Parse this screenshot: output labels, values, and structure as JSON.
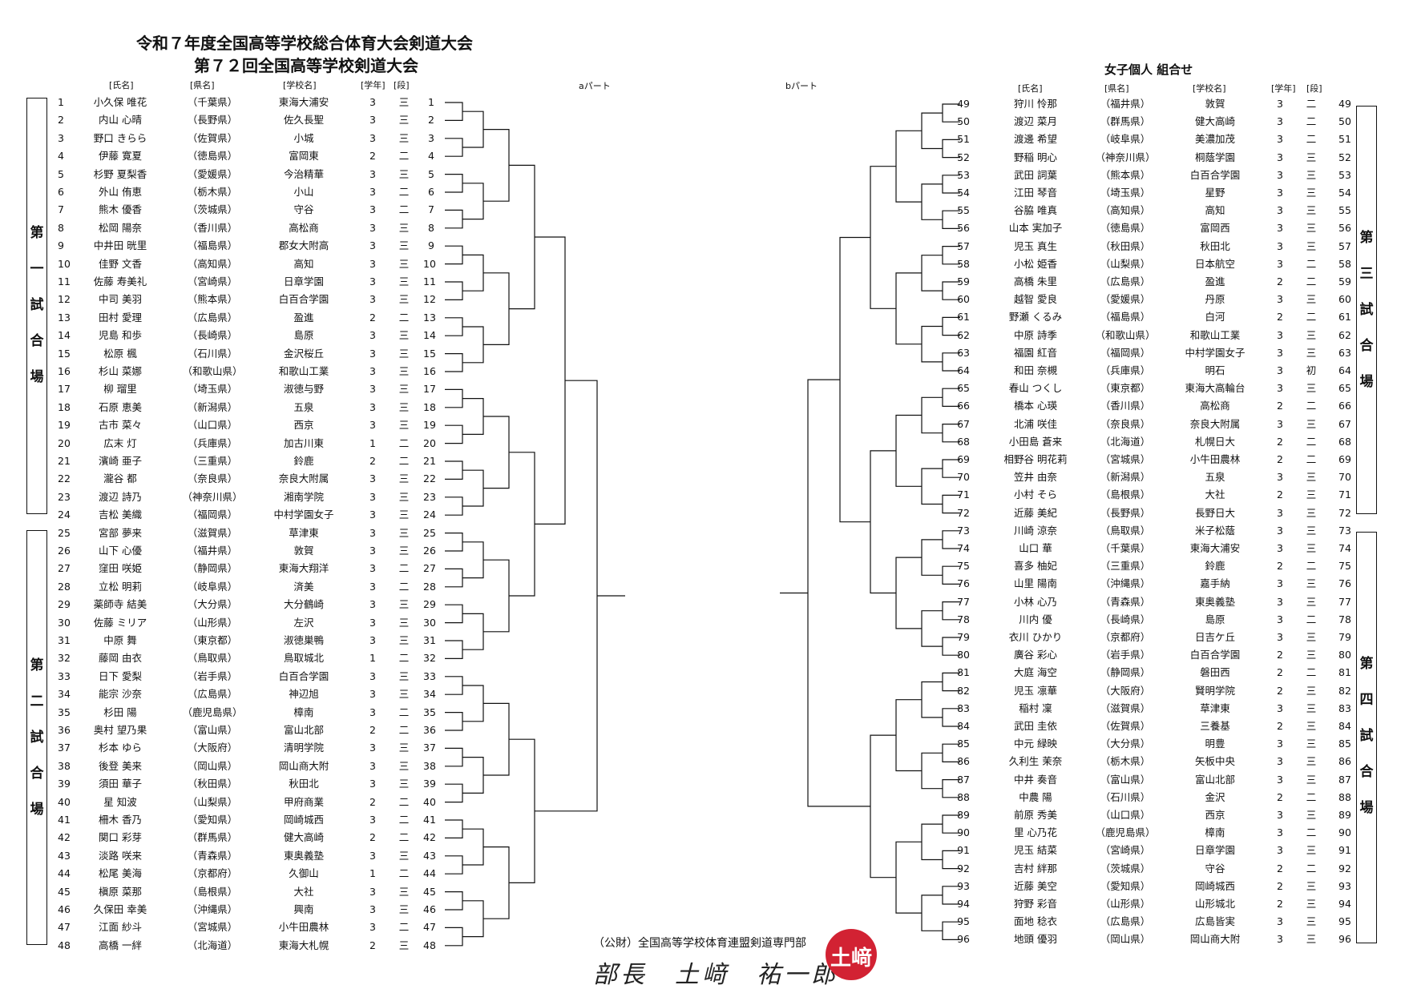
{
  "header": {
    "title_line1": "令和７年度全国高等学校総合体育大会剣道大会",
    "title_line2": "第７２回全国高等学校剣道大会",
    "subtitle": "女子個人 組合せ",
    "part_a": "aパート",
    "part_b": "bパート"
  },
  "columns": {
    "name": "[氏名]",
    "pref": "[県名]",
    "school": "[学校名]",
    "grade": "[学年]",
    "dan": "[段]"
  },
  "venues": [
    {
      "label": [
        "第",
        "一",
        "試",
        "合",
        "場"
      ]
    },
    {
      "label": [
        "第",
        "二",
        "試",
        "合",
        "場"
      ]
    },
    {
      "label": [
        "第",
        "三",
        "試",
        "合",
        "場"
      ]
    },
    {
      "label": [
        "第",
        "四",
        "試",
        "合",
        "場"
      ]
    }
  ],
  "footer": {
    "org": "（公財）全国高等学校体育連盟剣道専門部",
    "signature": "部長　土﨑　祐一郎",
    "seal": "土﨑"
  },
  "seal_color": "#d22233",
  "left_players": [
    {
      "no": "1",
      "name": "小久保 唯花",
      "pref": "（千葉県）",
      "school": "東海大浦安",
      "grade": "3",
      "dan": "三"
    },
    {
      "no": "2",
      "name": "内山 心晴",
      "pref": "（長野県）",
      "school": "佐久長聖",
      "grade": "3",
      "dan": "三"
    },
    {
      "no": "3",
      "name": "野口 きらら",
      "pref": "（佐賀県）",
      "school": "小城",
      "grade": "3",
      "dan": "三"
    },
    {
      "no": "4",
      "name": "伊藤 寛夏",
      "pref": "（徳島県）",
      "school": "富岡東",
      "grade": "2",
      "dan": "二"
    },
    {
      "no": "5",
      "name": "杉野 夏梨香",
      "pref": "（愛媛県）",
      "school": "今治精華",
      "grade": "3",
      "dan": "三"
    },
    {
      "no": "6",
      "name": "外山 侑恵",
      "pref": "（栃木県）",
      "school": "小山",
      "grade": "3",
      "dan": "二"
    },
    {
      "no": "7",
      "name": "熊木 優香",
      "pref": "（茨城県）",
      "school": "守谷",
      "grade": "3",
      "dan": "二"
    },
    {
      "no": "8",
      "name": "松岡 陽奈",
      "pref": "（香川県）",
      "school": "高松商",
      "grade": "3",
      "dan": "三"
    },
    {
      "no": "9",
      "name": "中井田 晄里",
      "pref": "（福島県）",
      "school": "郡女大附高",
      "grade": "3",
      "dan": "三"
    },
    {
      "no": "10",
      "name": "佳野 文香",
      "pref": "（高知県）",
      "school": "高知",
      "grade": "3",
      "dan": "三"
    },
    {
      "no": "11",
      "name": "佐藤 寿美礼",
      "pref": "（宮崎県）",
      "school": "日章学園",
      "grade": "3",
      "dan": "三"
    },
    {
      "no": "12",
      "name": "中司 美羽",
      "pref": "（熊本県）",
      "school": "白百合学園",
      "grade": "3",
      "dan": "三"
    },
    {
      "no": "13",
      "name": "田村 愛理",
      "pref": "（広島県）",
      "school": "盈進",
      "grade": "2",
      "dan": "二"
    },
    {
      "no": "14",
      "name": "児島 和歩",
      "pref": "（長崎県）",
      "school": "島原",
      "grade": "3",
      "dan": "三"
    },
    {
      "no": "15",
      "name": "松原 楓",
      "pref": "（石川県）",
      "school": "金沢桜丘",
      "grade": "3",
      "dan": "三"
    },
    {
      "no": "16",
      "name": "杉山 菜娜",
      "pref": "（和歌山県）",
      "school": "和歌山工業",
      "grade": "3",
      "dan": "三"
    },
    {
      "no": "17",
      "name": "柳 瑠里",
      "pref": "（埼玉県）",
      "school": "淑徳与野",
      "grade": "3",
      "dan": "三"
    },
    {
      "no": "18",
      "name": "石原 恵美",
      "pref": "（新潟県）",
      "school": "五泉",
      "grade": "3",
      "dan": "三"
    },
    {
      "no": "19",
      "name": "古市 菜々",
      "pref": "（山口県）",
      "school": "西京",
      "grade": "3",
      "dan": "三"
    },
    {
      "no": "20",
      "name": "広末 灯",
      "pref": "（兵庫県）",
      "school": "加古川東",
      "grade": "1",
      "dan": "二"
    },
    {
      "no": "21",
      "name": "濱崎 亜子",
      "pref": "（三重県）",
      "school": "鈴鹿",
      "grade": "2",
      "dan": "二"
    },
    {
      "no": "22",
      "name": "瀧谷 都",
      "pref": "（奈良県）",
      "school": "奈良大附属",
      "grade": "3",
      "dan": "三"
    },
    {
      "no": "23",
      "name": "渡辺 詩乃",
      "pref": "（神奈川県）",
      "school": "湘南学院",
      "grade": "3",
      "dan": "三"
    },
    {
      "no": "24",
      "name": "吉松 美織",
      "pref": "（福岡県）",
      "school": "中村学園女子",
      "grade": "3",
      "dan": "三"
    },
    {
      "no": "25",
      "name": "宮部 夢来",
      "pref": "（滋賀県）",
      "school": "草津東",
      "grade": "3",
      "dan": "三"
    },
    {
      "no": "26",
      "name": "山下 心優",
      "pref": "（福井県）",
      "school": "敦賀",
      "grade": "3",
      "dan": "三"
    },
    {
      "no": "27",
      "name": "窪田 咲姫",
      "pref": "（静岡県）",
      "school": "東海大翔洋",
      "grade": "3",
      "dan": "二"
    },
    {
      "no": "28",
      "name": "立松 明莉",
      "pref": "（岐阜県）",
      "school": "済美",
      "grade": "3",
      "dan": "二"
    },
    {
      "no": "29",
      "name": "薬師寺 結美",
      "pref": "（大分県）",
      "school": "大分鶴崎",
      "grade": "3",
      "dan": "三"
    },
    {
      "no": "30",
      "name": "佐藤 ミリア",
      "pref": "（山形県）",
      "school": "左沢",
      "grade": "3",
      "dan": "三"
    },
    {
      "no": "31",
      "name": "中原 舞",
      "pref": "（東京都）",
      "school": "淑徳巣鴨",
      "grade": "3",
      "dan": "三"
    },
    {
      "no": "32",
      "name": "藤岡 由衣",
      "pref": "（鳥取県）",
      "school": "鳥取城北",
      "grade": "1",
      "dan": "二"
    },
    {
      "no": "33",
      "name": "日下 愛梨",
      "pref": "（岩手県）",
      "school": "白百合学園",
      "grade": "3",
      "dan": "三"
    },
    {
      "no": "34",
      "name": "能宗 沙奈",
      "pref": "（広島県）",
      "school": "神辺旭",
      "grade": "3",
      "dan": "三"
    },
    {
      "no": "35",
      "name": "杉田 陽",
      "pref": "（鹿児島県）",
      "school": "樟南",
      "grade": "3",
      "dan": "二"
    },
    {
      "no": "36",
      "name": "奥村 望乃果",
      "pref": "（富山県）",
      "school": "富山北部",
      "grade": "2",
      "dan": "二"
    },
    {
      "no": "37",
      "name": "杉本 ゆら",
      "pref": "（大阪府）",
      "school": "清明学院",
      "grade": "3",
      "dan": "三"
    },
    {
      "no": "38",
      "name": "後登 美来",
      "pref": "（岡山県）",
      "school": "岡山商大附",
      "grade": "3",
      "dan": "三"
    },
    {
      "no": "39",
      "name": "須田 華子",
      "pref": "（秋田県）",
      "school": "秋田北",
      "grade": "3",
      "dan": "三"
    },
    {
      "no": "40",
      "name": "星 知波",
      "pref": "（山梨県）",
      "school": "甲府商業",
      "grade": "2",
      "dan": "二"
    },
    {
      "no": "41",
      "name": "柵木 香乃",
      "pref": "（愛知県）",
      "school": "岡崎城西",
      "grade": "3",
      "dan": "二"
    },
    {
      "no": "42",
      "name": "関口 彩芽",
      "pref": "（群馬県）",
      "school": "健大高崎",
      "grade": "2",
      "dan": "二"
    },
    {
      "no": "43",
      "name": "淡路 咲来",
      "pref": "（青森県）",
      "school": "東奥義塾",
      "grade": "3",
      "dan": "三"
    },
    {
      "no": "44",
      "name": "松尾 美海",
      "pref": "（京都府）",
      "school": "久御山",
      "grade": "1",
      "dan": "二"
    },
    {
      "no": "45",
      "name": "槇原 菜那",
      "pref": "（島根県）",
      "school": "大社",
      "grade": "3",
      "dan": "三"
    },
    {
      "no": "46",
      "name": "久保田 幸美",
      "pref": "（沖縄県）",
      "school": "興南",
      "grade": "3",
      "dan": "三"
    },
    {
      "no": "47",
      "name": "江面 紗斗",
      "pref": "（宮城県）",
      "school": "小牛田農林",
      "grade": "3",
      "dan": "二"
    },
    {
      "no": "48",
      "name": "高橋 一絆",
      "pref": "（北海道）",
      "school": "東海大札幌",
      "grade": "2",
      "dan": "三"
    }
  ],
  "right_players": [
    {
      "no": "49",
      "name": "狩川 怜那",
      "pref": "（福井県）",
      "school": "敦賀",
      "grade": "3",
      "dan": "二"
    },
    {
      "no": "50",
      "name": "渡辺 菜月",
      "pref": "（群馬県）",
      "school": "健大高崎",
      "grade": "3",
      "dan": "二"
    },
    {
      "no": "51",
      "name": "渡邊 希望",
      "pref": "（岐阜県）",
      "school": "美濃加茂",
      "grade": "3",
      "dan": "二"
    },
    {
      "no": "52",
      "name": "野稲 明心",
      "pref": "（神奈川県）",
      "school": "桐蔭学園",
      "grade": "3",
      "dan": "三"
    },
    {
      "no": "53",
      "name": "武田 詞葉",
      "pref": "（熊本県）",
      "school": "白百合学園",
      "grade": "3",
      "dan": "三"
    },
    {
      "no": "54",
      "name": "江田 琴音",
      "pref": "（埼玉県）",
      "school": "星野",
      "grade": "3",
      "dan": "三"
    },
    {
      "no": "55",
      "name": "谷脇 唯真",
      "pref": "（高知県）",
      "school": "高知",
      "grade": "3",
      "dan": "三"
    },
    {
      "no": "56",
      "name": "山本 実加子",
      "pref": "（徳島県）",
      "school": "富岡西",
      "grade": "3",
      "dan": "三"
    },
    {
      "no": "57",
      "name": "児玉 真生",
      "pref": "（秋田県）",
      "school": "秋田北",
      "grade": "3",
      "dan": "三"
    },
    {
      "no": "58",
      "name": "小松 姫香",
      "pref": "（山梨県）",
      "school": "日本航空",
      "grade": "3",
      "dan": "二"
    },
    {
      "no": "59",
      "name": "高橋 朱里",
      "pref": "（広島県）",
      "school": "盈進",
      "grade": "2",
      "dan": "二"
    },
    {
      "no": "60",
      "name": "越智 愛良",
      "pref": "（愛媛県）",
      "school": "丹原",
      "grade": "3",
      "dan": "三"
    },
    {
      "no": "61",
      "name": "野瀬 くるみ",
      "pref": "（福島県）",
      "school": "白河",
      "grade": "2",
      "dan": "二"
    },
    {
      "no": "62",
      "name": "中原 詩季",
      "pref": "（和歌山県）",
      "school": "和歌山工業",
      "grade": "3",
      "dan": "三"
    },
    {
      "no": "63",
      "name": "福園 紅音",
      "pref": "（福岡県）",
      "school": "中村学園女子",
      "grade": "3",
      "dan": "三"
    },
    {
      "no": "64",
      "name": "和田 奈槻",
      "pref": "（兵庫県）",
      "school": "明石",
      "grade": "3",
      "dan": "初"
    },
    {
      "no": "65",
      "name": "春山 つくし",
      "pref": "（東京都）",
      "school": "東海大高輪台",
      "grade": "3",
      "dan": "三"
    },
    {
      "no": "66",
      "name": "橋本 心瑛",
      "pref": "（香川県）",
      "school": "高松商",
      "grade": "2",
      "dan": "二"
    },
    {
      "no": "67",
      "name": "北浦 咲佳",
      "pref": "（奈良県）",
      "school": "奈良大附属",
      "grade": "3",
      "dan": "三"
    },
    {
      "no": "68",
      "name": "小田島 蒼来",
      "pref": "（北海道）",
      "school": "札幌日大",
      "grade": "2",
      "dan": "二"
    },
    {
      "no": "69",
      "name": "相野谷 明花莉",
      "pref": "（宮城県）",
      "school": "小牛田農林",
      "grade": "2",
      "dan": "二"
    },
    {
      "no": "70",
      "name": "笠井 由奈",
      "pref": "（新潟県）",
      "school": "五泉",
      "grade": "3",
      "dan": "三"
    },
    {
      "no": "71",
      "name": "小村 そら",
      "pref": "（島根県）",
      "school": "大社",
      "grade": "2",
      "dan": "三"
    },
    {
      "no": "72",
      "name": "近藤 美紀",
      "pref": "（長野県）",
      "school": "長野日大",
      "grade": "3",
      "dan": "三"
    },
    {
      "no": "73",
      "name": "川崎 涼奈",
      "pref": "（鳥取県）",
      "school": "米子松蔭",
      "grade": "3",
      "dan": "三"
    },
    {
      "no": "74",
      "name": "山口 華",
      "pref": "（千葉県）",
      "school": "東海大浦安",
      "grade": "3",
      "dan": "三"
    },
    {
      "no": "75",
      "name": "喜多 柚妃",
      "pref": "（三重県）",
      "school": "鈴鹿",
      "grade": "2",
      "dan": "二"
    },
    {
      "no": "76",
      "name": "山里 陽南",
      "pref": "（沖縄県）",
      "school": "嘉手納",
      "grade": "3",
      "dan": "三"
    },
    {
      "no": "77",
      "name": "小林 心乃",
      "pref": "（青森県）",
      "school": "東奥義塾",
      "grade": "3",
      "dan": "三"
    },
    {
      "no": "78",
      "name": "川内 優",
      "pref": "（長崎県）",
      "school": "島原",
      "grade": "3",
      "dan": "二"
    },
    {
      "no": "79",
      "name": "衣川 ひかり",
      "pref": "（京都府）",
      "school": "日吉ケ丘",
      "grade": "3",
      "dan": "三"
    },
    {
      "no": "80",
      "name": "廣谷 彩心",
      "pref": "（岩手県）",
      "school": "白百合学園",
      "grade": "2",
      "dan": "三"
    },
    {
      "no": "81",
      "name": "大庭 海空",
      "pref": "（静岡県）",
      "school": "磐田西",
      "grade": "2",
      "dan": "二"
    },
    {
      "no": "82",
      "name": "児玉 凛華",
      "pref": "（大阪府）",
      "school": "賢明学院",
      "grade": "2",
      "dan": "三"
    },
    {
      "no": "83",
      "name": "稲村 凜",
      "pref": "（滋賀県）",
      "school": "草津東",
      "grade": "3",
      "dan": "三"
    },
    {
      "no": "84",
      "name": "武田 圭依",
      "pref": "（佐賀県）",
      "school": "三養基",
      "grade": "2",
      "dan": "三"
    },
    {
      "no": "85",
      "name": "中元 緑映",
      "pref": "（大分県）",
      "school": "明豊",
      "grade": "3",
      "dan": "三"
    },
    {
      "no": "86",
      "name": "久利生 茉奈",
      "pref": "（栃木県）",
      "school": "矢板中央",
      "grade": "3",
      "dan": "三"
    },
    {
      "no": "87",
      "name": "中井 奏音",
      "pref": "（富山県）",
      "school": "富山北部",
      "grade": "3",
      "dan": "三"
    },
    {
      "no": "88",
      "name": "中農 陽",
      "pref": "（石川県）",
      "school": "金沢",
      "grade": "2",
      "dan": "二"
    },
    {
      "no": "89",
      "name": "前原 秀美",
      "pref": "（山口県）",
      "school": "西京",
      "grade": "3",
      "dan": "三"
    },
    {
      "no": "90",
      "name": "里 心乃花",
      "pref": "（鹿児島県）",
      "school": "樟南",
      "grade": "3",
      "dan": "二"
    },
    {
      "no": "91",
      "name": "児玉 結菜",
      "pref": "（宮崎県）",
      "school": "日章学園",
      "grade": "3",
      "dan": "三"
    },
    {
      "no": "92",
      "name": "吉村 絆那",
      "pref": "（茨城県）",
      "school": "守谷",
      "grade": "2",
      "dan": "二"
    },
    {
      "no": "93",
      "name": "近藤 美空",
      "pref": "（愛知県）",
      "school": "岡崎城西",
      "grade": "2",
      "dan": "三"
    },
    {
      "no": "94",
      "name": "狩野 彩音",
      "pref": "（山形県）",
      "school": "山形城北",
      "grade": "2",
      "dan": "三"
    },
    {
      "no": "95",
      "name": "面地 稔衣",
      "pref": "（広島県）",
      "school": "広島皆実",
      "grade": "3",
      "dan": "三"
    },
    {
      "no": "96",
      "name": "地頭 優羽",
      "pref": "（岡山県）",
      "school": "岡山商大附",
      "grade": "3",
      "dan": "三"
    }
  ]
}
